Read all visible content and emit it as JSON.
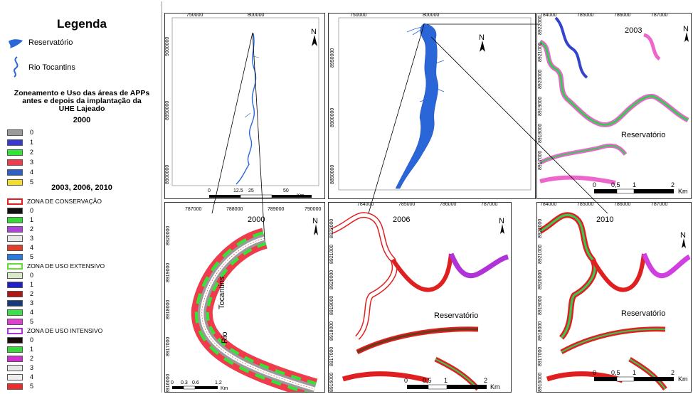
{
  "legend": {
    "title": "Legenda",
    "reservoir_label": "Reservatório",
    "river_label": "Rio Tocantins",
    "subtitle_lines": [
      "Zoneamento e Uso das áreas de APPs",
      "antes e depois da implantação da",
      "UHE Lajeado"
    ],
    "year_2000": "2000",
    "classes_2000": [
      {
        "label": "0",
        "color": "#9a9a9a"
      },
      {
        "label": "1",
        "color": "#3a3ad0"
      },
      {
        "label": "2",
        "color": "#33e533"
      },
      {
        "label": "3",
        "color": "#ef3b4b"
      },
      {
        "label": "4",
        "color": "#2d5fc8"
      },
      {
        "label": "5",
        "color": "#f3dd2b"
      }
    ],
    "years_later": "2003, 2006, 2010",
    "zones": [
      {
        "name": "ZONA DE CONSERVAÇÃO",
        "border": "#e02020",
        "classes": [
          {
            "label": "0",
            "color": "#111111"
          },
          {
            "label": "1",
            "color": "#38d838"
          },
          {
            "label": "2",
            "color": "#b040e0"
          },
          {
            "label": "3",
            "color": "#e8e8e8"
          },
          {
            "label": "4",
            "color": "#e0402a"
          },
          {
            "label": "5",
            "color": "#2a7ae0"
          }
        ]
      },
      {
        "name": "ZONA DE USO EXTENSIVO",
        "border": "#66dd33",
        "classes": [
          {
            "label": "0",
            "color": "#d8e8c8"
          },
          {
            "label": "1",
            "color": "#2020c8"
          },
          {
            "label": "2",
            "color": "#b01818"
          },
          {
            "label": "3",
            "color": "#163a7a"
          },
          {
            "label": "4",
            "color": "#3ae04a"
          },
          {
            "label": "5",
            "color": "#e040d0"
          }
        ]
      },
      {
        "name": "ZONA DE USO INTENSIVO",
        "border": "#b033d8",
        "classes": [
          {
            "label": "0",
            "color": "#1a0a0a"
          },
          {
            "label": "1",
            "color": "#38d838"
          },
          {
            "label": "2",
            "color": "#d030d0"
          },
          {
            "label": "3",
            "color": "#e8e8e8"
          },
          {
            "label": "4",
            "color": "#eeeeee"
          },
          {
            "label": "5",
            "color": "#ee2a2a"
          }
        ]
      }
    ]
  },
  "north_label": "N",
  "panels": {
    "river_overview": {
      "ticks_x": [
        "750000",
        "800000"
      ],
      "ticks_y": [
        "9000000",
        "8950000",
        "8900000"
      ],
      "scale": [
        "0",
        "12.5",
        "25",
        "50"
      ],
      "scale_unit": "Km"
    },
    "reservoir_overview": {
      "ticks_x": [
        "750000",
        "800000"
      ],
      "ticks_y": [
        "8950000",
        "8900000",
        "8850000"
      ]
    },
    "zoom_2003": {
      "year": "2003",
      "reservoir_label": "Reservatório",
      "ticks_x": [
        "784000",
        "785000",
        "786000",
        "787000"
      ],
      "ticks_y": [
        "8922000",
        "8921000",
        "8920000",
        "8919000",
        "8918000",
        "8917000"
      ],
      "scale": [
        "0",
        "0,5",
        "1",
        "2"
      ],
      "scale_unit": "Km"
    },
    "zoom_2000": {
      "year": "2000",
      "river_words": [
        "Tocantins",
        "Rio"
      ],
      "ticks_x": [
        "787000",
        "788000",
        "789000",
        "790000"
      ],
      "ticks_y": [
        "8920000",
        "8919000",
        "8918000",
        "8917000",
        "8916000"
      ],
      "scale": [
        "0",
        "0.3",
        "0.6",
        "1.2"
      ],
      "scale_unit": "Km"
    },
    "zoom_2006": {
      "year": "2006",
      "reservoir_label": "Reservatório",
      "ticks_x": [
        "784000",
        "785000",
        "786000",
        "787000"
      ],
      "ticks_y": [
        "8922000",
        "8921000",
        "8920000",
        "8919000",
        "8918000",
        "8917000",
        "8916000"
      ],
      "scale": [
        "0",
        "0,5",
        "1",
        "2"
      ],
      "scale_unit": "Km"
    },
    "zoom_2010": {
      "year": "2010",
      "reservoir_label": "Reservatório",
      "ticks_x": [
        "784000",
        "785000",
        "786000",
        "787000"
      ],
      "ticks_y": [
        "8922000",
        "8921000",
        "8920000",
        "8919000",
        "8918000",
        "8917000",
        "8916000"
      ],
      "scale": [
        "0",
        "0,5",
        "1",
        "2"
      ],
      "scale_unit": "Km"
    }
  }
}
